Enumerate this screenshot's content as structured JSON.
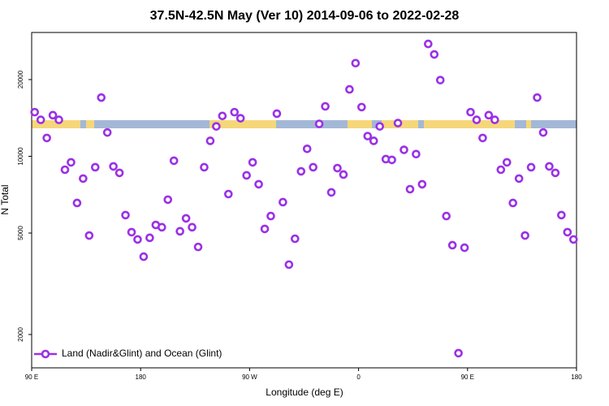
{
  "chart_data": {
    "type": "scatter",
    "title": "37.5N-42.5N May (Ver 10)   2014-09-06 to 2022-02-28",
    "x_label": "Longitude (deg E)",
    "y_label": "N Total",
    "log_y": true,
    "legend": "bottom-left",
    "xlim": [
      90,
      540
    ],
    "ylim": [
      1480,
      30600
    ],
    "xticks": [
      {
        "value": 90,
        "label": "90 E"
      },
      180,
      {
        "value": 270,
        "label": "90 W"
      },
      {
        "value": 360,
        "label": "0"
      },
      {
        "value": 450,
        "label": "90 E"
      },
      {
        "value": 540,
        "label": "180"
      }
    ],
    "yticks": [
      2000,
      5000,
      10000,
      20000
    ],
    "series": [
      {
        "name": "Land (Nadir&Glint) and Ocean (Glint)",
        "color": "#9b30e6",
        "x": [
          92.5,
          97.5,
          102.5,
          107.5,
          112.5,
          117.5,
          122.5,
          127.5,
          132.5,
          137.5,
          142.5,
          147.5,
          152.5,
          157.5,
          162.5,
          167.5,
          172.5,
          177.5,
          182.5,
          187.5,
          192.5,
          197.5,
          202.5,
          207.5,
          212.5,
          217.5,
          222.5,
          227.5,
          232.5,
          237.5,
          242.5,
          247.5,
          252.5,
          257.5,
          262.5,
          267.5,
          272.5,
          277.5,
          282.5,
          287.5,
          292.5,
          297.5,
          302.5,
          307.5,
          312.5,
          317.5,
          322.5,
          327.5,
          332.5,
          337.5,
          342.5,
          347.5,
          352.5,
          357.5,
          362.5,
          367.5,
          372.5,
          377.5,
          382.5,
          387.5,
          392.5,
          397.5,
          402.5,
          407.5,
          412.5,
          417.5,
          422.5,
          427.5,
          432.5,
          437.5,
          442.5,
          447.5,
          452.5,
          457.5,
          462.5,
          467.5,
          472.5,
          477.5,
          482.5,
          487.5,
          492.5,
          497.5,
          502.5,
          507.5,
          512.5,
          517.5,
          522.5,
          527.5,
          532.5,
          537.5
        ],
        "values": [
          14900,
          13900,
          11800,
          14500,
          13900,
          8860,
          9470,
          6560,
          8180,
          4890,
          9060,
          17000,
          12400,
          9130,
          8610,
          5880,
          5040,
          4720,
          4040,
          4790,
          5380,
          5270,
          6760,
          9610,
          5080,
          5710,
          5270,
          4410,
          9060,
          11500,
          13100,
          14400,
          7110,
          14900,
          14100,
          8420,
          9470,
          7770,
          5190,
          5830,
          14700,
          6610,
          3760,
          4750,
          8730,
          10700,
          9060,
          13400,
          15700,
          7220,
          8990,
          8480,
          18300,
          23200,
          15600,
          12000,
          11500,
          13100,
          9750,
          9680,
          13500,
          10600,
          7430,
          10200,
          7770,
          27600,
          25100,
          19900,
          5830,
          4480,
          1690,
          4380,
          14900,
          13900,
          11800,
          14500,
          13900,
          8860,
          9470,
          6560,
          8180,
          4890,
          9060,
          17000,
          12400,
          9130,
          8610,
          5880,
          5040,
          4720
        ]
      }
    ]
  }
}
